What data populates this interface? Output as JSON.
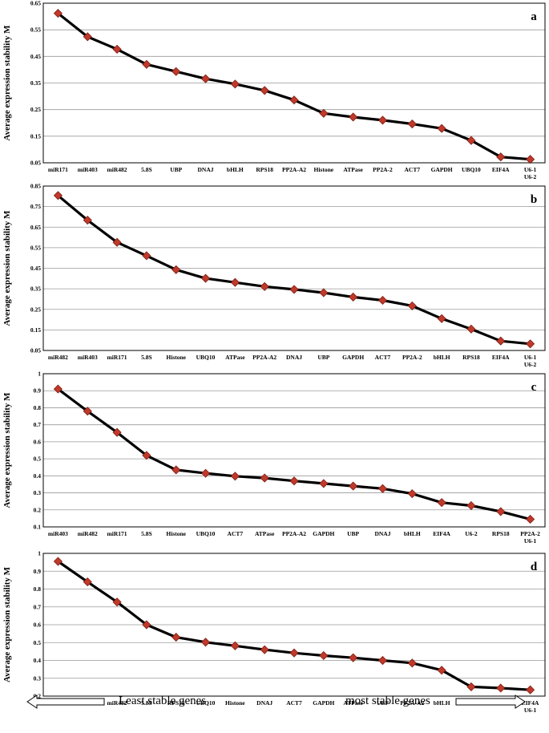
{
  "y_axis_label": "Average expression stability M",
  "footer": {
    "left_label": "Least stable genes",
    "right_label": "most stable genes"
  },
  "colors": {
    "line": "#000000",
    "marker_fill": "#c0392b",
    "marker_stroke": "#7b1e12",
    "grid": "#999999"
  },
  "chart_data": [
    {
      "type": "line",
      "panel": "a",
      "categories": [
        "miR171",
        "miR403",
        "miR482",
        "5.8S",
        "UBP",
        "DNAJ",
        "bHLH",
        "RPS18",
        "PP2A-A2",
        "Histone",
        "ATPase",
        "PP2A-2",
        "ACT7",
        "GAPDH",
        "UBQ10",
        "EIF4A",
        "U6-1\nU6-2"
      ],
      "values": [
        0.612,
        0.524,
        0.477,
        0.42,
        0.393,
        0.366,
        0.346,
        0.322,
        0.286,
        0.236,
        0.222,
        0.21,
        0.196,
        0.179,
        0.134,
        0.072,
        0.063
      ],
      "yticks": [
        "0.05",
        "0.15",
        "0.25",
        "0.35",
        "0.45",
        "0.55",
        "0.65"
      ],
      "ylim": [
        0.05,
        0.65
      ]
    },
    {
      "type": "line",
      "panel": "b",
      "categories": [
        "miR482",
        "miR403",
        "miR171",
        "5.8S",
        "Histone",
        "UBQ10",
        "ATPase",
        "PP2A-A2",
        "DNAJ",
        "UBP",
        "GAPDH",
        "ACT7",
        "PP2A-2",
        "bHLH",
        "RPS18",
        "EIF4A",
        "U6-1\nU6-2"
      ],
      "values": [
        0.804,
        0.684,
        0.576,
        0.511,
        0.443,
        0.401,
        0.381,
        0.361,
        0.347,
        0.331,
        0.31,
        0.294,
        0.267,
        0.205,
        0.154,
        0.096,
        0.082
      ],
      "yticks": [
        "0.05",
        "0.15",
        "0.25",
        "0.35",
        "0.45",
        "0.55",
        "0.65",
        "0.75",
        "0.85"
      ],
      "ylim": [
        0.05,
        0.85
      ]
    },
    {
      "type": "line",
      "panel": "c",
      "categories": [
        "miR403",
        "miR482",
        "miR171",
        "5.8S",
        "Histone",
        "UBQ10",
        "ACT7",
        "ATPase",
        "PP2A-A2",
        "GAPDH",
        "UBP",
        "DNAJ",
        "bHLH",
        "EIF4A",
        "U6-2",
        "RPS18",
        "PP2A-2\nU6-1"
      ],
      "values": [
        0.91,
        0.78,
        0.655,
        0.52,
        0.435,
        0.415,
        0.398,
        0.387,
        0.37,
        0.355,
        0.34,
        0.325,
        0.295,
        0.243,
        0.225,
        0.19,
        0.145
      ],
      "yticks": [
        "0.1",
        "0.2",
        "0.3",
        "0.4",
        "0.5",
        "0.6",
        "0.7",
        "0.8",
        "0.9",
        "1"
      ],
      "ylim": [
        0.1,
        1.0
      ]
    },
    {
      "type": "line",
      "panel": "d",
      "categories": [
        "miR403",
        "miR171",
        "miR482",
        "5.8S",
        "RPS18",
        "UBQ10",
        "Histone",
        "DNAJ",
        "ACT7",
        "GAPDH",
        "ATPase",
        "UBP",
        "PP2A-A2",
        "bHLH",
        "PP2A-2",
        "U6-2",
        "EIF4A\nU6-1"
      ],
      "values": [
        0.955,
        0.84,
        0.727,
        0.6,
        0.53,
        0.502,
        0.482,
        0.46,
        0.442,
        0.427,
        0.415,
        0.4,
        0.385,
        0.345,
        0.252,
        0.245,
        0.235
      ],
      "yticks": [
        "0.2",
        "0.3",
        "0.4",
        "0.5",
        "0.6",
        "0.7",
        "0.8",
        "0.9",
        "1"
      ],
      "ylim": [
        0.2,
        1.0
      ]
    }
  ]
}
